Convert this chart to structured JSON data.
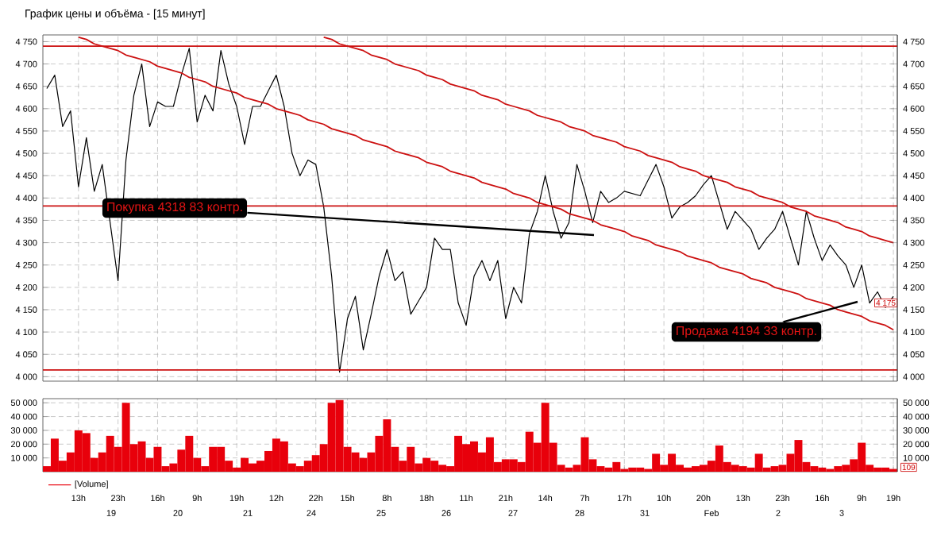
{
  "chart_data": [
    {
      "type": "line",
      "title": "График цены и объёма - [15 минут]",
      "tick_labels": "y",
      "categories": [
        null,
        null,
        null,
        null,
        null,
        null,
        null,
        null,
        null,
        null,
        null,
        null,
        null,
        null,
        null,
        null,
        null,
        null,
        null,
        null,
        null,
        null,
        null,
        null,
        null,
        null,
        null,
        null,
        null,
        null,
        null,
        null,
        null,
        null,
        null,
        null,
        null,
        null,
        null,
        null,
        null,
        null,
        null,
        null,
        null,
        null,
        null,
        null,
        null,
        null,
        null,
        null,
        null,
        null,
        null,
        null,
        null,
        null,
        null,
        null,
        null,
        null,
        null,
        null,
        null,
        null,
        null,
        null,
        null,
        null,
        null,
        null,
        null,
        null,
        null,
        null,
        null,
        null,
        null,
        null,
        null,
        null,
        null,
        null,
        null,
        null,
        null,
        null,
        null,
        null,
        null,
        null,
        null,
        null,
        null,
        null,
        null,
        null,
        null,
        null,
        null,
        null,
        null,
        null,
        null,
        null,
        null,
        null
      ],
      "ylim": [
        3990,
        4765
      ],
      "y2lim": [
        3990,
        4765
      ],
      "grid": true,
      "legend": false,
      "yticks": [
        {
          "value": 4000,
          "label": "4 000"
        },
        {
          "value": 4050,
          "label": "4 050"
        },
        {
          "value": 4100,
          "label": "4 100"
        },
        {
          "value": 4150,
          "label": "4 150"
        },
        {
          "value": 4200,
          "label": "4 200"
        },
        {
          "value": 4250,
          "label": "4 250"
        },
        {
          "value": 4300,
          "label": "4 300"
        },
        {
          "value": 4350,
          "label": "4 350"
        },
        {
          "value": 4400,
          "label": "4 400"
        },
        {
          "value": 4450,
          "label": "4 450"
        },
        {
          "value": 4500,
          "label": "4 500"
        },
        {
          "value": 4550,
          "label": "4 550"
        },
        {
          "value": 4600,
          "label": "4 600"
        },
        {
          "value": 4650,
          "label": "4 650"
        },
        {
          "value": 4700,
          "label": "4 700"
        },
        {
          "value": 4750,
          "label": "4 750"
        }
      ],
      "y2ticks": [
        {
          "value": 4000,
          "label": "4 000"
        },
        {
          "value": 4050,
          "label": "4 050"
        },
        {
          "value": 4100,
          "label": "4 100"
        },
        {
          "value": 4150,
          "label": "4 150"
        },
        {
          "value": 4200,
          "label": "4 200"
        },
        {
          "value": 4250,
          "label": "4 250"
        },
        {
          "value": 4300,
          "label": "4 300"
        },
        {
          "value": 4350,
          "label": "4 350"
        },
        {
          "value": 4400,
          "label": "4 400"
        },
        {
          "value": 4450,
          "label": "4 450"
        },
        {
          "value": 4500,
          "label": "4 500"
        },
        {
          "value": 4550,
          "label": "4 550"
        },
        {
          "value": 4600,
          "label": "4 600"
        },
        {
          "value": 4650,
          "label": "4 650"
        },
        {
          "value": 4700,
          "label": "4 700"
        },
        {
          "value": 4750,
          "label": "4 750"
        }
      ],
      "series": [
        {
          "color": "#000000",
          "values": [
            4645,
            4675,
            4560,
            4595,
            4425,
            4535,
            4415,
            4475,
            null,
            4215,
            4485,
            4630,
            4700,
            4560,
            4615,
            4605,
            4605,
            4675,
            4735,
            4570,
            4630,
            4595,
            4730,
            4655,
            4605,
            4520,
            4605,
            4605,
            4640,
            4675,
            4605,
            4500,
            4450,
            4485,
            4475,
            4380,
            4225,
            4010,
            4130,
            4180,
            4060,
            4140,
            4225,
            4285,
            4215,
            4235,
            4140,
            4170,
            4200,
            4310,
            4285,
            4285,
            4165,
            4115,
            4225,
            4260,
            4215,
            4260,
            4130,
            4200,
            4165,
            4320,
            4370,
            4450,
            4370,
            4310,
            4345,
            4475,
            4415,
            4345,
            4415,
            4390,
            4400,
            4415,
            4410,
            4405,
            4440,
            4475,
            4425,
            4355,
            4380,
            4390,
            4405,
            4430,
            4450,
            4390,
            4330,
            4370,
            4350,
            4330,
            4285,
            4310,
            4330,
            4370,
            4310,
            4250,
            4370,
            4310,
            4260,
            4295,
            4270,
            4250,
            4200,
            4250,
            4165,
            4190,
            4155,
            4180
          ]
        },
        {
          "color": "#cc1111",
          "values": [
            null,
            null,
            null,
            null,
            4760,
            4755,
            4745,
            4740,
            4735,
            4730,
            4720,
            4715,
            4710,
            4705,
            4695,
            4690,
            4685,
            4680,
            4670,
            4665,
            4660,
            4650,
            4645,
            4640,
            4635,
            4625,
            4620,
            4615,
            4610,
            4600,
            4595,
            4590,
            4585,
            4575,
            4570,
            4565,
            4555,
            4550,
            4545,
            4540,
            4530,
            4525,
            4520,
            4515,
            4505,
            4500,
            4495,
            4490,
            4480,
            4475,
            4470,
            4460,
            4455,
            4450,
            4445,
            4435,
            4430,
            4425,
            4420,
            4410,
            4405,
            4400,
            4390,
            4385,
            4380,
            4375,
            4365,
            4360,
            4355,
            4350,
            4340,
            4335,
            4330,
            4325,
            4315,
            4310,
            4305,
            4295,
            4290,
            4285,
            4280,
            4270,
            4265,
            4260,
            4255,
            4245,
            4240,
            4235,
            4230,
            4220,
            4215,
            4210,
            4200,
            4195,
            4190,
            4185,
            4175,
            4170,
            4165,
            4160,
            4150,
            4145,
            4140,
            4135,
            4125,
            4120,
            4115,
            4105
          ]
        },
        {
          "color": "#cc1111",
          "values": [
            null,
            null,
            null,
            null,
            null,
            null,
            null,
            null,
            null,
            null,
            null,
            null,
            null,
            null,
            null,
            null,
            null,
            null,
            null,
            null,
            null,
            null,
            null,
            null,
            null,
            null,
            null,
            null,
            null,
            null,
            null,
            null,
            null,
            null,
            null,
            4760,
            4755,
            4745,
            4740,
            4735,
            4730,
            4720,
            4715,
            4710,
            4700,
            4695,
            4690,
            4685,
            4675,
            4670,
            4665,
            4655,
            4650,
            4645,
            4640,
            4630,
            4625,
            4620,
            4610,
            4605,
            4600,
            4595,
            4585,
            4580,
            4575,
            4570,
            4560,
            4555,
            4550,
            4540,
            4535,
            4530,
            4525,
            4515,
            4510,
            4505,
            4495,
            4490,
            4485,
            4480,
            4470,
            4465,
            4460,
            4450,
            4445,
            4440,
            4435,
            4425,
            4420,
            4415,
            4405,
            4400,
            4395,
            4390,
            4380,
            4375,
            4370,
            4360,
            4355,
            4350,
            4345,
            4335,
            4330,
            4325,
            4315,
            4310,
            4305,
            4300
          ]
        }
      ],
      "ref_lines": [
        {
          "axis": "y",
          "value": 4740,
          "color": "#cc1111"
        },
        {
          "axis": "y",
          "value": 4382,
          "color": "#cc1111"
        },
        {
          "axis": "y",
          "value": 4015,
          "color": "#cc1111"
        }
      ],
      "annotations": [
        "Покупка 4318 83 контр.",
        "Продажа 4194 33 контр.",
        "4 175"
      ]
    },
    {
      "type": "bar",
      "categories": [
        null,
        null,
        null,
        null,
        "13h",
        null,
        null,
        null,
        null,
        "23h",
        null,
        null,
        null,
        null,
        "16h",
        null,
        null,
        null,
        null,
        "9h",
        null,
        null,
        null,
        null,
        "19h",
        null,
        null,
        null,
        null,
        "12h",
        null,
        null,
        null,
        null,
        "22h",
        null,
        null,
        null,
        "15h",
        null,
        null,
        null,
        null,
        "8h",
        null,
        null,
        null,
        null,
        "18h",
        null,
        null,
        null,
        null,
        "11h",
        null,
        null,
        null,
        null,
        "21h",
        null,
        null,
        null,
        null,
        "14h",
        null,
        null,
        null,
        null,
        "7h",
        null,
        null,
        null,
        null,
        "17h",
        null,
        null,
        null,
        null,
        "10h",
        null,
        null,
        null,
        null,
        "20h",
        null,
        null,
        null,
        null,
        "13h",
        null,
        null,
        null,
        null,
        "23h",
        null,
        null,
        null,
        null,
        "16h",
        null,
        null,
        null,
        null,
        "9h",
        null,
        null,
        null,
        "19h"
      ],
      "ylim": [
        0,
        53000
      ],
      "y2lim": [
        0,
        53000
      ],
      "grid": true,
      "legend": "bottom left",
      "yticks": [
        {
          "value": 10000,
          "label": "10 000"
        },
        {
          "value": 20000,
          "label": "20 000"
        },
        {
          "value": 30000,
          "label": "30 000"
        },
        {
          "value": 40000,
          "label": "40 000"
        },
        {
          "value": 50000,
          "label": "50 000"
        }
      ],
      "y2ticks": [
        {
          "value": 10000,
          "label": "10 000"
        },
        {
          "value": 20000,
          "label": "20 000"
        },
        {
          "value": 30000,
          "label": "30 000"
        },
        {
          "value": 40000,
          "label": "40 000"
        },
        {
          "value": 50000,
          "label": "50 000"
        }
      ],
      "series": [
        {
          "name": "[Volume]",
          "color": "#e8000b",
          "values": [
            4000,
            24000,
            8000,
            14000,
            30000,
            28000,
            10000,
            14000,
            26000,
            18000,
            50000,
            20000,
            22000,
            10000,
            18000,
            4000,
            6000,
            16000,
            26000,
            10000,
            4000,
            18000,
            18000,
            8000,
            3000,
            10000,
            6000,
            8000,
            15000,
            24000,
            22000,
            6000,
            4000,
            8000,
            12000,
            20000,
            50000,
            52000,
            18000,
            14000,
            10000,
            14000,
            26000,
            38000,
            18000,
            8000,
            18000,
            6000,
            10000,
            8000,
            5000,
            4000,
            26000,
            20000,
            22000,
            14000,
            25000,
            7000,
            9000,
            9000,
            7000,
            29000,
            21000,
            50000,
            21000,
            5000,
            3000,
            5000,
            25000,
            9000,
            4000,
            3000,
            7000,
            2000,
            3000,
            3000,
            2000,
            13000,
            5000,
            13000,
            5000,
            3000,
            4000,
            5000,
            8000,
            19000,
            7000,
            5000,
            4000,
            3000,
            13000,
            3000,
            4000,
            5000,
            13000,
            23000,
            7000,
            4000,
            3000,
            2000,
            4000,
            5000,
            9000,
            21000,
            5000,
            3000,
            3000,
            2000
          ]
        }
      ],
      "annotations": [
        "109",
        "19",
        "20",
        "21",
        "24",
        "25",
        "26",
        "27",
        "28",
        "31",
        "Feb",
        "2",
        "3"
      ]
    }
  ]
}
